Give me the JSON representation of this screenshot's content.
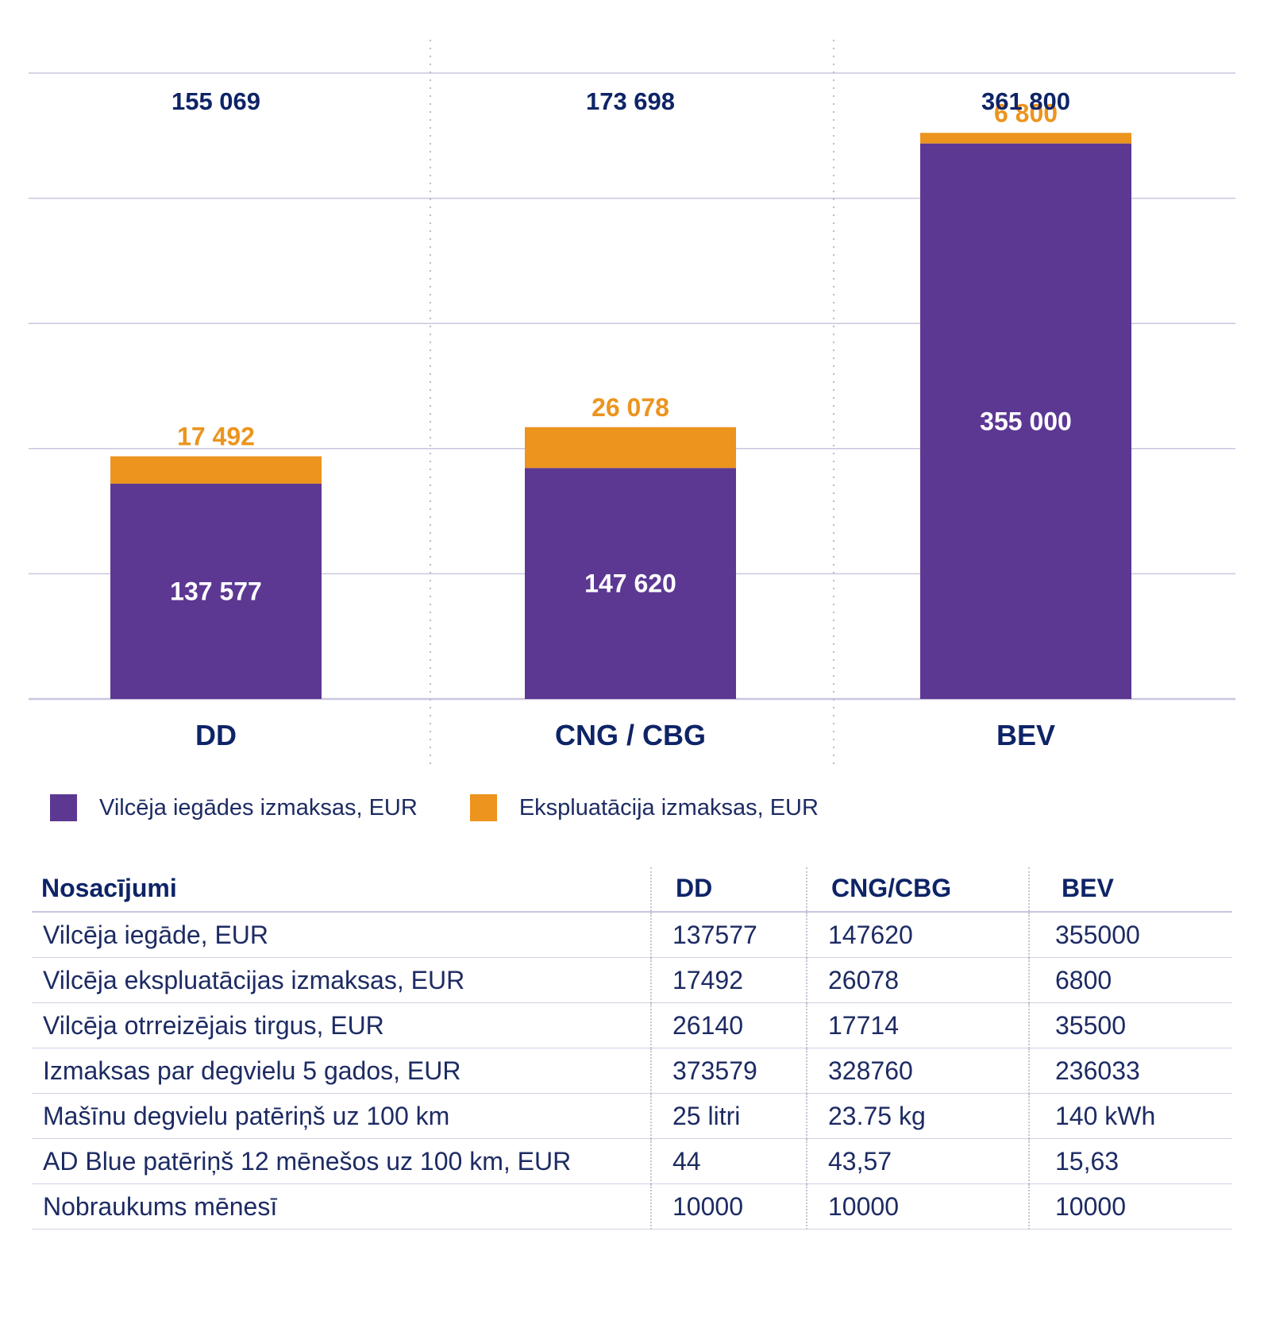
{
  "chart_data": {
    "type": "bar",
    "stacked": true,
    "categories": [
      "DD",
      "CNG / CBG",
      "BEV"
    ],
    "series": [
      {
        "name": "Vilcēja iegādes izmaksas, EUR",
        "color": "#5c3893",
        "values": [
          137577,
          147620,
          355000
        ],
        "labels": [
          "137 577",
          "147 620",
          "355 000"
        ]
      },
      {
        "name": "Ekspluatācija izmaksas, EUR",
        "color": "#ec941e",
        "values": [
          17492,
          26078,
          6800
        ],
        "labels": [
          "17 492",
          "26 078",
          "6 800"
        ]
      }
    ],
    "totals": [
      "155 069",
      "173 698",
      "361 800"
    ],
    "ylim": [
      0,
      400000
    ],
    "grid": true,
    "legend": "bottom-left",
    "colors": {
      "axis_label": "#0e2467",
      "total_label": "#0e2467",
      "grid": "#c9c6df"
    }
  },
  "table": {
    "headers": [
      "Nosacījumi",
      "DD",
      "CNG/CBG",
      "BEV"
    ],
    "rows": [
      [
        "Vilcēja iegāde, EUR",
        "137577",
        "147620",
        "355000"
      ],
      [
        "Vilcēja ekspluatācijas izmaksas, EUR",
        "17492",
        "26078",
        "6800"
      ],
      [
        "Vilcēja otrreizējais tirgus, EUR",
        "26140",
        "17714",
        "35500"
      ],
      [
        "Izmaksas par degvielu 5 gados, EUR",
        "373579",
        "328760",
        "236033"
      ],
      [
        "Mašīnu degvielu patēriņš uz 100 km",
        "25 litri",
        "23.75 kg",
        "140  kWh"
      ],
      [
        "AD Blue patēriņš 12 mēnešos uz 100 km, EUR",
        "44",
        "43,57",
        "15,63"
      ],
      [
        "Nobraukums mēnesī",
        "10000",
        "10000",
        "10000"
      ]
    ]
  }
}
